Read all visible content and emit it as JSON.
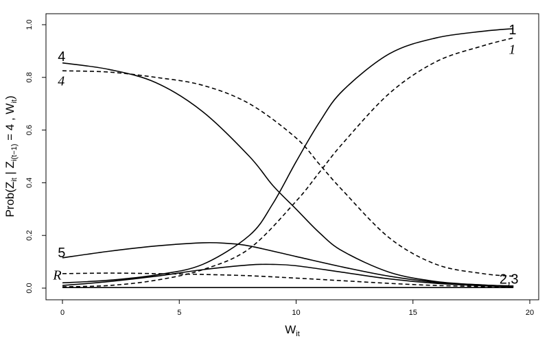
{
  "chart_data": {
    "type": "line",
    "xlabel_main": "W",
    "xlabel_sub": "it",
    "ylabel_parts": [
      {
        "text": "Prob(Z",
        "sub": false
      },
      {
        "text": "it",
        "sub": true
      },
      {
        "text": " | Z",
        "sub": false
      },
      {
        "text": "i(t−1)",
        "sub": true
      },
      {
        "text": " = 4 , W",
        "sub": false
      },
      {
        "text": "it",
        "sub": true
      },
      {
        "text": ")",
        "sub": false
      }
    ],
    "xlim": [
      0,
      20
    ],
    "ylim": [
      0,
      1
    ],
    "x_ticks": [
      0,
      5,
      10,
      15,
      20
    ],
    "x_tick_labels": [
      "0",
      "5",
      "10",
      "15",
      "20"
    ],
    "y_ticks": [
      0,
      0.2,
      0.4,
      0.6,
      0.8,
      1.0
    ],
    "y_tick_labels": [
      "0.0",
      "0.2",
      "0.4",
      "0.6",
      "0.8",
      "1.0"
    ],
    "grid": false,
    "legend": "none",
    "series": [
      {
        "style": "solid",
        "x": [
          0,
          2,
          4,
          6,
          8,
          9,
          10,
          11,
          12,
          14,
          16,
          18,
          19.3
        ],
        "y": [
          0.02,
          0.03,
          0.05,
          0.09,
          0.2,
          0.32,
          0.48,
          0.63,
          0.75,
          0.89,
          0.95,
          0.975,
          0.985
        ]
      },
      {
        "style": "dashed",
        "x": [
          0,
          2,
          4,
          6,
          8,
          10,
          11,
          12,
          14,
          16,
          18,
          19.3
        ],
        "y": [
          0.005,
          0.01,
          0.03,
          0.07,
          0.15,
          0.33,
          0.44,
          0.55,
          0.74,
          0.86,
          0.92,
          0.95
        ]
      },
      {
        "style": "solid",
        "x": [
          0,
          2,
          4,
          6,
          8,
          9,
          10,
          11,
          12,
          14,
          16,
          18,
          19.3
        ],
        "y": [
          0.855,
          0.83,
          0.78,
          0.67,
          0.5,
          0.39,
          0.3,
          0.21,
          0.14,
          0.06,
          0.025,
          0.012,
          0.008
        ]
      },
      {
        "style": "dashed",
        "x": [
          0,
          2,
          4,
          6,
          8,
          10,
          11,
          12,
          14,
          16,
          18,
          19.3
        ],
        "y": [
          0.825,
          0.82,
          0.8,
          0.77,
          0.7,
          0.57,
          0.47,
          0.37,
          0.19,
          0.09,
          0.055,
          0.045
        ]
      },
      {
        "style": "solid",
        "x": [
          0,
          2,
          4,
          6,
          7,
          8,
          10,
          12,
          14,
          16,
          18,
          19.3
        ],
        "y": [
          0.115,
          0.14,
          0.16,
          0.172,
          0.17,
          0.16,
          0.12,
          0.08,
          0.045,
          0.022,
          0.012,
          0.008
        ]
      },
      {
        "style": "dashed",
        "x": [
          0,
          2,
          4,
          6,
          8,
          10,
          12,
          14,
          16,
          18,
          19.3
        ],
        "y": [
          0.055,
          0.057,
          0.055,
          0.052,
          0.047,
          0.038,
          0.028,
          0.018,
          0.01,
          0.006,
          0.005
        ]
      },
      {
        "style": "solid",
        "x": [
          0,
          2,
          4,
          6,
          8,
          9,
          10,
          12,
          14,
          16,
          18,
          19.3
        ],
        "y": [
          0.01,
          0.025,
          0.045,
          0.07,
          0.088,
          0.09,
          0.085,
          0.06,
          0.035,
          0.018,
          0.009,
          0.006
        ]
      },
      {
        "style": "solid",
        "x": [
          0,
          5,
          10,
          15,
          19.3
        ],
        "y": [
          0.002,
          0.002,
          0.002,
          0.002,
          0.002
        ]
      }
    ],
    "annotations": [
      {
        "text": "1",
        "x": 19.1,
        "y": 0.985,
        "style": "upright",
        "anchor": "start",
        "dy": 8
      },
      {
        "text": "1",
        "x": 19.1,
        "y": 0.905,
        "style": "italic",
        "anchor": "start",
        "dy": 6
      },
      {
        "text": "4",
        "x": -0.2,
        "y": 0.88,
        "style": "upright",
        "anchor": "start",
        "dy": 7
      },
      {
        "text": "4",
        "x": -0.2,
        "y": 0.785,
        "style": "italic",
        "anchor": "start",
        "dy": 6
      },
      {
        "text": "5",
        "x": -0.2,
        "y": 0.135,
        "style": "upright",
        "anchor": "start",
        "dy": 7
      },
      {
        "text": "R",
        "x": -0.4,
        "y": 0.048,
        "style": "italic",
        "anchor": "start",
        "dy": 6
      },
      {
        "text": "2,3",
        "x": 18.7,
        "y": 0.035,
        "style": "upright",
        "anchor": "start",
        "dy": 7
      }
    ]
  }
}
